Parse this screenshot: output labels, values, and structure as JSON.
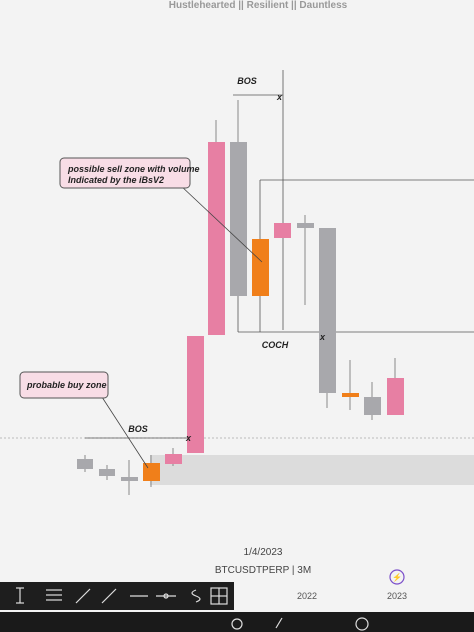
{
  "header": {
    "title": "Hustlehearted || Resilient || Dauntless"
  },
  "annotations": {
    "bos_top": "BOS",
    "bos_top_mark": "x",
    "sell_zone": "possible sell zone with volume Indicated by the iBsV2",
    "coch": "COCH",
    "coch_mark": "x",
    "buy_zone": "probable buy zone",
    "bos_bottom": "BOS",
    "bos_bottom_mark": "x"
  },
  "footer": {
    "date": "1/4/2023",
    "symbol": "BTCUSDTPERP | 3M",
    "axis_labels": [
      "2022",
      "2023"
    ]
  }
}
